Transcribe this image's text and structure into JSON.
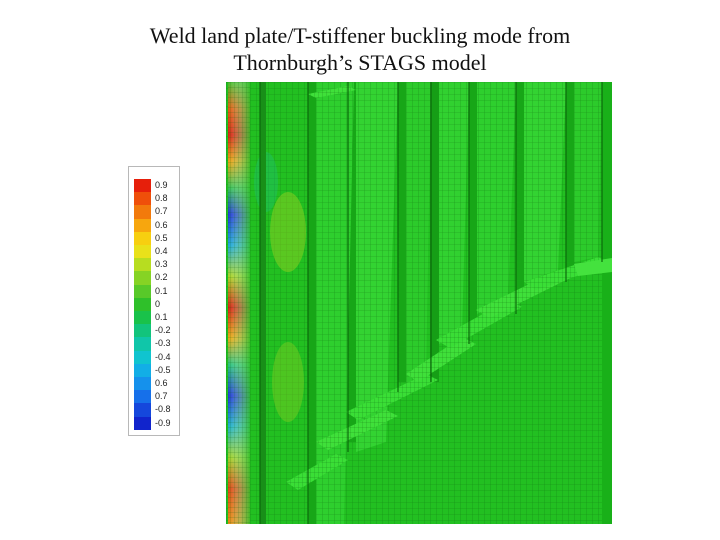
{
  "title": {
    "line1": "Weld land plate/T-stiffener buckling mode from",
    "line2": "Thornburgh’s STAGS model"
  },
  "legend": {
    "entries": [
      {
        "label": "0.9",
        "color": "#e61f0b"
      },
      {
        "label": "0.8",
        "color": "#ef4f0a"
      },
      {
        "label": "0.7",
        "color": "#f27a0c"
      },
      {
        "label": "0.6",
        "color": "#f7a60e"
      },
      {
        "label": "0.5",
        "color": "#f7cf10"
      },
      {
        "label": "0.4",
        "color": "#e9e11a"
      },
      {
        "label": "0.3",
        "color": "#b7dd20"
      },
      {
        "label": "0.2",
        "color": "#86d324"
      },
      {
        "label": "0.1",
        "color": "#58c929"
      },
      {
        "label": "0",
        "color": "#2fc02a"
      },
      {
        "label": "0.1",
        "color": "#19c24a"
      },
      {
        "label": "-0.2",
        "color": "#12c47c"
      },
      {
        "label": "-0.3",
        "color": "#10c6a9"
      },
      {
        "label": "-0.4",
        "color": "#10c4cf"
      },
      {
        "label": "-0.5",
        "color": "#12aee6"
      },
      {
        "label": "0.6",
        "color": "#1591ec"
      },
      {
        "label": "0.7",
        "color": "#1670ea"
      },
      {
        "label": "-0.8",
        "color": "#1547dc"
      },
      {
        "label": "-0.9",
        "color": "#1124cc"
      }
    ]
  },
  "colors": {
    "mesh_green": "#1fbf1f",
    "mesh_green_light": "#3fd33a",
    "mesh_green_dark": "#18a818",
    "grid_line": "#0a5a0a",
    "peak_red": "#d81d0a",
    "trough_blue": "#1a36d8"
  }
}
